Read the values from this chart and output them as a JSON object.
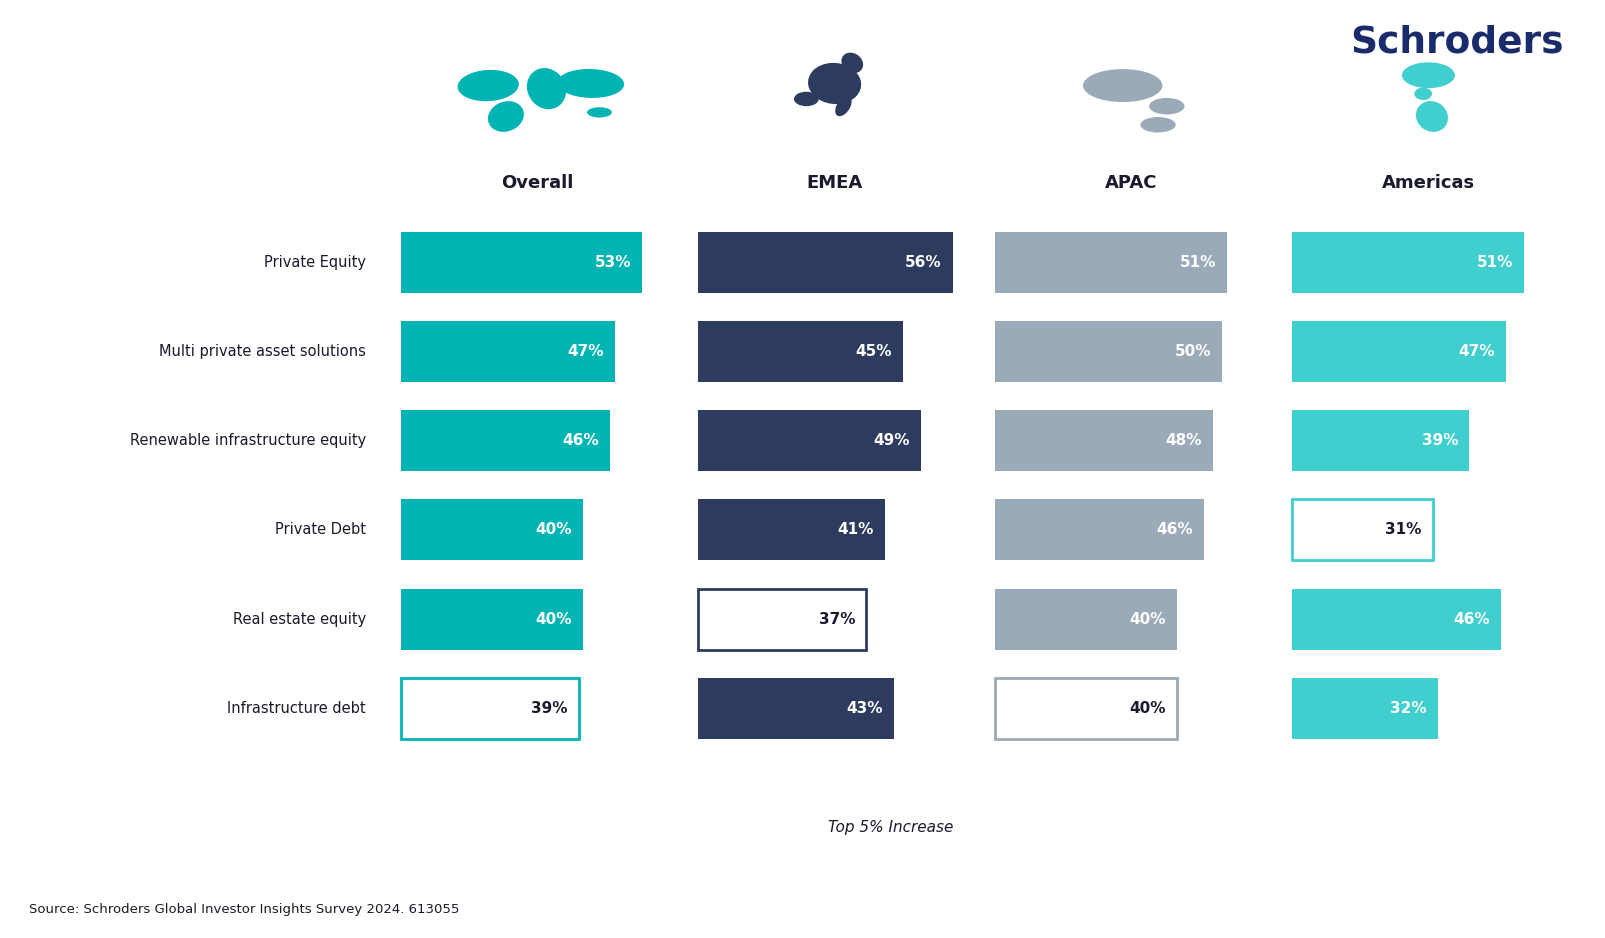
{
  "categories": [
    "Private Equity",
    "Multi private asset solutions",
    "Renewable infrastructure equity",
    "Private Debt",
    "Real estate equity",
    "Infrastructure debt"
  ],
  "columns": [
    "Overall",
    "EMEA",
    "APAC",
    "Americas"
  ],
  "values": [
    [
      53,
      56,
      51,
      51
    ],
    [
      47,
      45,
      50,
      47
    ],
    [
      46,
      49,
      48,
      39
    ],
    [
      40,
      41,
      46,
      31
    ],
    [
      40,
      37,
      40,
      46
    ],
    [
      39,
      43,
      40,
      32
    ]
  ],
  "filled": [
    [
      true,
      true,
      true,
      true
    ],
    [
      true,
      true,
      true,
      true
    ],
    [
      true,
      true,
      true,
      true
    ],
    [
      true,
      true,
      true,
      false
    ],
    [
      true,
      false,
      true,
      true
    ],
    [
      false,
      true,
      false,
      true
    ]
  ],
  "bar_colors": [
    "#00B4B4",
    "#2D3B5E",
    "#9BAAB8",
    "#40CECE"
  ],
  "outline_colors": [
    "#00B4B4",
    "#2D3B5E",
    "#9BAAB8",
    "#40CECE"
  ],
  "text_color_filled": "#FFFFFF",
  "text_color_outline": "#1a1a2e",
  "title": "Schroders",
  "footnote": "Top 5% Increase",
  "source": "Source: Schroders Global Investor Insights Survey 2024. 613055",
  "background_color": "#FFFFFF",
  "bar_max_value": 60
}
